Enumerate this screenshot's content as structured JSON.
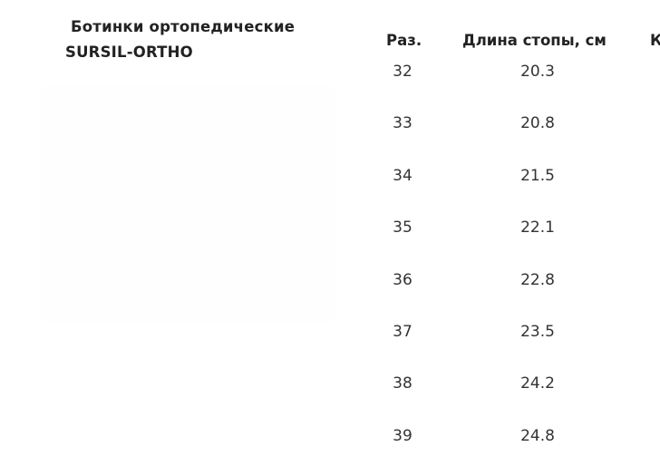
{
  "product": {
    "title_line1": "Ботинки ортопедические",
    "title_line2": "SURSIL-ORTHO"
  },
  "table": {
    "headers": [
      "Раз.",
      "Длина стопы, см",
      "К"
    ],
    "rows": [
      {
        "size": "32",
        "length": "20.3"
      },
      {
        "size": "33",
        "length": "20.8"
      },
      {
        "size": "34",
        "length": "21.5"
      },
      {
        "size": "35",
        "length": "22.1"
      },
      {
        "size": "36",
        "length": "22.8"
      },
      {
        "size": "37",
        "length": "23.5"
      },
      {
        "size": "38",
        "length": "24.2"
      },
      {
        "size": "39",
        "length": "24.8"
      }
    ]
  }
}
